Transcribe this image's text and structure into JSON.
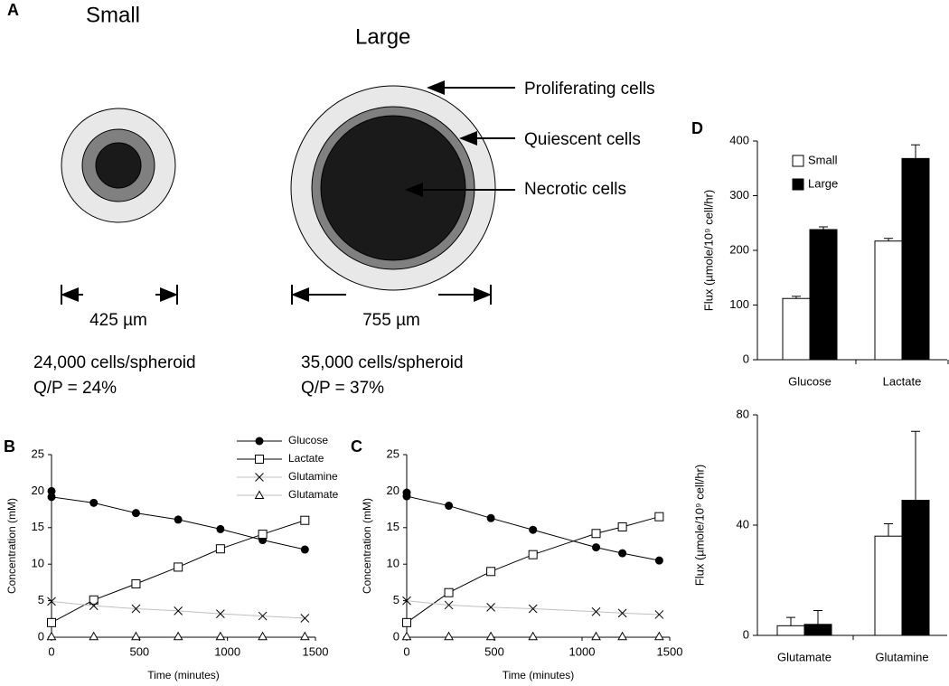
{
  "panel_labels": [
    "A",
    "B",
    "C",
    "D"
  ],
  "diagram": {
    "small_title": "Small",
    "large_title": "Large",
    "layers": [
      "Proliferating cells",
      "Quiescent cells",
      "Necrotic cells"
    ],
    "small_diameter": "425 µm",
    "large_diameter": "755 µm",
    "small_cells": "24,000 cells/spheroid",
    "small_qp": "Q/P = 24%",
    "large_cells": "35,000 cells/spheroid",
    "large_qp": "Q/P = 37%"
  },
  "chart_data": [
    {
      "type": "line",
      "x_label": "Time (minutes)",
      "y_label": "Concentration (mM)",
      "xlim": [
        0,
        1500
      ],
      "xticks": [
        0,
        500,
        1000,
        1500
      ],
      "ylim": [
        0,
        25
      ],
      "yticks": [
        0,
        5,
        10,
        15,
        20,
        25
      ],
      "series": [
        {
          "name": "Glucose",
          "color": "#000000",
          "line_color": "#000000",
          "marker": "circle",
          "x": [
            0,
            0,
            240,
            480,
            720,
            960,
            1200,
            1440
          ],
          "values": [
            20,
            19.2,
            18.4,
            17.0,
            16.1,
            14.8,
            13.3,
            12.0
          ]
        },
        {
          "name": "Lactate",
          "color": "#000000",
          "line_color": "#000000",
          "marker": "square",
          "x": [
            0,
            240,
            480,
            720,
            960,
            1200,
            1440
          ],
          "values": [
            2.0,
            5.1,
            7.3,
            9.6,
            12.1,
            14.1,
            16.0
          ]
        },
        {
          "name": "Glutamine",
          "color": "#000000",
          "line_color": "#c0c0c0",
          "marker": "x",
          "x": [
            0,
            240,
            480,
            720,
            960,
            1200,
            1440
          ],
          "values": [
            4.9,
            4.3,
            3.9,
            3.6,
            3.2,
            2.9,
            2.6
          ]
        },
        {
          "name": "Glutamate",
          "color": "#000000",
          "line_color": "#c0c0c0",
          "marker": "triangle",
          "x": [
            0,
            240,
            480,
            720,
            960,
            1200,
            1440
          ],
          "values": [
            0.1,
            0.1,
            0.1,
            0.1,
            0.1,
            0.1,
            0.1
          ]
        }
      ]
    },
    {
      "type": "line",
      "x_label": "Time (minutes)",
      "y_label": "Concentration (mM)",
      "xlim": [
        0,
        1500
      ],
      "xticks": [
        0,
        500,
        1000,
        1500
      ],
      "ylim": [
        0,
        25
      ],
      "yticks": [
        0,
        5,
        10,
        15,
        20,
        25
      ],
      "series": [
        {
          "color": "#000000",
          "line_color": "#000000",
          "marker": "circle",
          "x": [
            0,
            0,
            240,
            480,
            720,
            1080,
            1230,
            1440
          ],
          "values": [
            19.8,
            19.3,
            18.0,
            16.3,
            14.7,
            12.3,
            11.5,
            10.5
          ]
        },
        {
          "color": "#000000",
          "line_color": "#000000",
          "marker": "square",
          "x": [
            0,
            240,
            480,
            720,
            1080,
            1230,
            1440
          ],
          "values": [
            2.0,
            6.1,
            9.0,
            11.3,
            14.2,
            15.1,
            16.5
          ]
        },
        {
          "color": "#000000",
          "line_color": "#c0c0c0",
          "marker": "x",
          "x": [
            0,
            240,
            480,
            720,
            1080,
            1230,
            1440
          ],
          "values": [
            5.0,
            4.4,
            4.1,
            3.9,
            3.5,
            3.3,
            3.1
          ]
        },
        {
          "color": "#000000",
          "line_color": "#c0c0c0",
          "marker": "triangle",
          "x": [
            0,
            240,
            480,
            720,
            1080,
            1230,
            1440
          ],
          "values": [
            0.1,
            0.1,
            0.1,
            0.1,
            0.1,
            0.1,
            0.1
          ]
        }
      ]
    },
    {
      "type": "bar",
      "y_label": "Flux (µmole/10⁹ cell/hr)",
      "categories": [
        "Glucose",
        "Lactate"
      ],
      "ylim": [
        0,
        400
      ],
      "yticks": [
        0,
        100,
        200,
        300,
        400
      ],
      "series": [
        {
          "name": "Small",
          "color": "#ffffff",
          "values": [
            112,
            217
          ],
          "errors": [
            4,
            5
          ]
        },
        {
          "name": "Large",
          "color": "#000000",
          "values": [
            238,
            368
          ],
          "errors": [
            5,
            25
          ]
        }
      ]
    },
    {
      "type": "bar",
      "y_label": "Flux (µmole/10⁹ cell/hr)",
      "categories": [
        "Glutamate",
        "Glutamine"
      ],
      "ylim": [
        0,
        80
      ],
      "yticks": [
        0,
        40,
        80
      ],
      "series": [
        {
          "color": "#ffffff",
          "values": [
            3.5,
            36
          ],
          "errors": [
            3,
            4.5
          ]
        },
        {
          "color": "#000000",
          "values": [
            4,
            49
          ],
          "errors": [
            5,
            25
          ]
        }
      ]
    }
  ]
}
